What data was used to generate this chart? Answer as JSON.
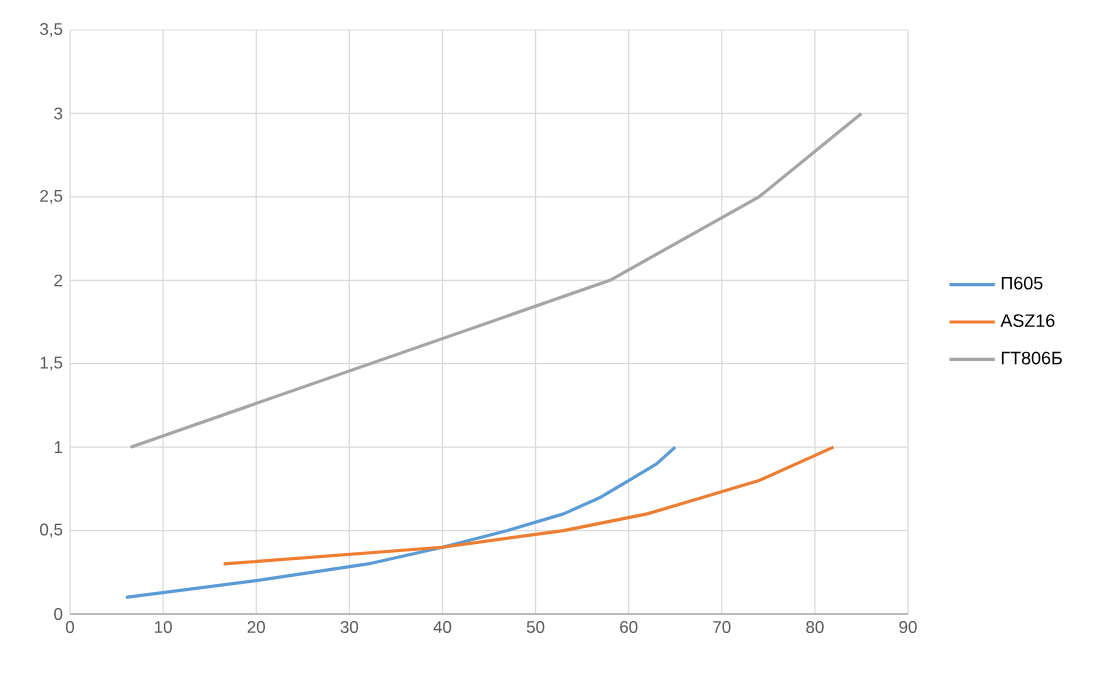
{
  "chart_data": {
    "type": "line",
    "xlim": [
      0,
      90
    ],
    "ylim": [
      0,
      3.5
    ],
    "xticks": [
      0,
      10,
      20,
      30,
      40,
      50,
      60,
      70,
      80,
      90
    ],
    "yticks": [
      0,
      {
        "value": 0.5,
        "label": "0,5"
      },
      1,
      {
        "value": 1.5,
        "label": "1,5"
      },
      2,
      {
        "value": 2.5,
        "label": "2,5"
      },
      3,
      {
        "value": 3.5,
        "label": "3,5"
      }
    ],
    "grid": true,
    "legend": "right",
    "marker": "none",
    "line_style": "solid",
    "series": [
      {
        "name": "П605",
        "color": "#5b9bd5",
        "x": [
          6,
          20,
          32,
          40,
          47,
          53,
          57,
          60,
          63,
          65
        ],
        "values": [
          0.1,
          0.2,
          0.3,
          0.4,
          0.5,
          0.6,
          0.7,
          0.8,
          0.9,
          1.0
        ]
      },
      {
        "name": "ASZ16",
        "color": "#ed7d31",
        "x": [
          16.5,
          40,
          53,
          62,
          68,
          74,
          78,
          82
        ],
        "values": [
          0.3,
          0.4,
          0.5,
          0.6,
          0.7,
          0.8,
          0.9,
          1.0
        ]
      },
      {
        "name": "ГТ806Б",
        "color": "#a5a5a5",
        "x": [
          6.5,
          58,
          74,
          85
        ],
        "values": [
          1.0,
          2.0,
          2.5,
          3.0
        ]
      }
    ]
  }
}
